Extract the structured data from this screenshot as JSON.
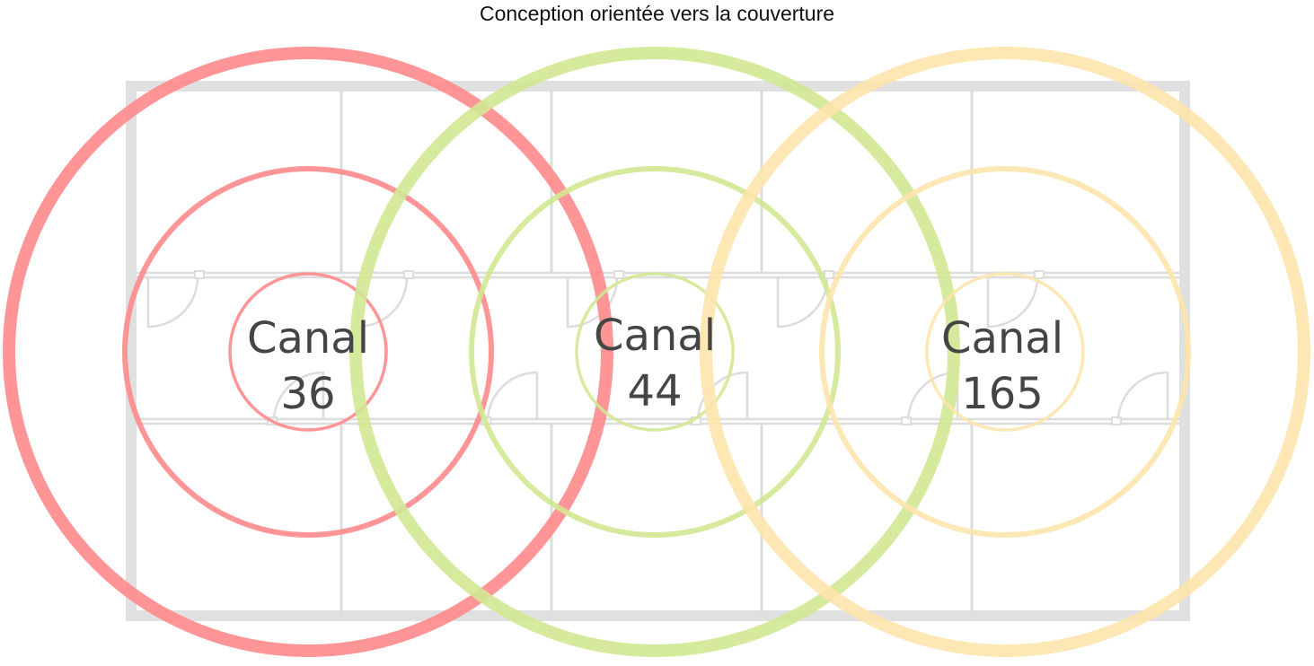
{
  "title": "Conception orientée vers la couverture",
  "access_points": [
    {
      "label_line1": "Canal",
      "label_line2": "36",
      "color": "#ff8a8c"
    },
    {
      "label_line1": "Canal",
      "label_line2": "44",
      "color": "#d2e894"
    },
    {
      "label_line1": "Canal",
      "label_line2": "165",
      "color": "#fde4ac"
    }
  ],
  "colors": {
    "wall": "#e0e0e0",
    "label": "#454545"
  }
}
